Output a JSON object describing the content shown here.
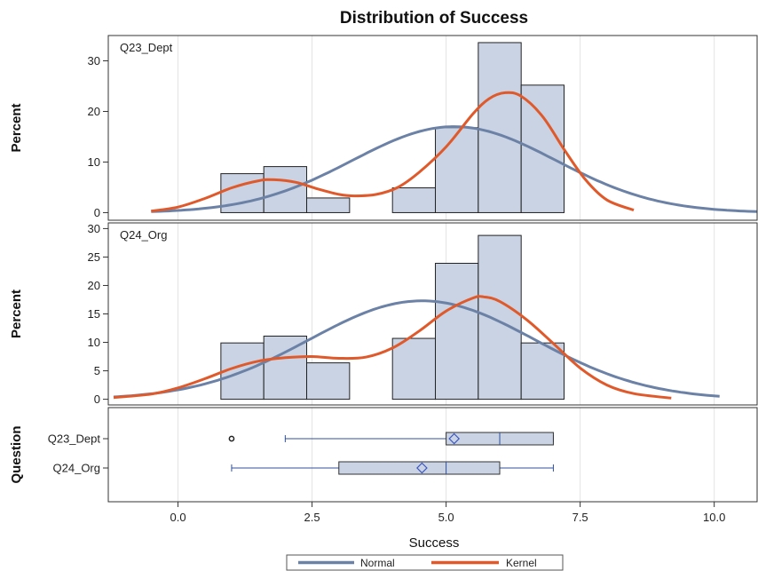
{
  "chart_data": {
    "type": "histogram-panel",
    "title": "Distribution of Success",
    "xlabel": "Success",
    "xlim": [
      -1.3,
      10.8
    ],
    "x_ticks": [
      "0.0",
      "2.5",
      "5.0",
      "7.5",
      "10.0"
    ],
    "x_tick_values": [
      0,
      2.5,
      5,
      7.5,
      10
    ],
    "bin_width": 0.8,
    "colors": {
      "bar_fill": "#c9d3e3",
      "bar_stroke": "#222222",
      "normal": "#6b81a6",
      "kernel": "#e0592b",
      "box_line": "#2f4f9c",
      "grid": "#e3e3e3",
      "axis": "#333333"
    },
    "panels": [
      {
        "label": "Q23_Dept",
        "ylabel": "Percent",
        "ylim": [
          -1.5,
          35
        ],
        "y_ticks": [
          "0",
          "10",
          "20",
          "30"
        ],
        "y_tick_values": [
          0,
          10,
          20,
          30
        ],
        "bins": [
          {
            "left": 0.8,
            "percent": 7.7
          },
          {
            "left": 1.6,
            "percent": 9.1
          },
          {
            "left": 2.4,
            "percent": 2.9
          },
          {
            "left": 4.0,
            "percent": 4.9
          },
          {
            "left": 4.8,
            "percent": 16.8
          },
          {
            "left": 5.6,
            "percent": 33.6
          },
          {
            "left": 6.4,
            "percent": 25.2
          }
        ],
        "normal": {
          "mean": 5.15,
          "sd": 1.9,
          "peak_percent": 17,
          "x_range": [
            -0.5,
            10.8
          ]
        },
        "kernel": [
          [
            -0.5,
            0.3
          ],
          [
            0.0,
            1.1
          ],
          [
            0.5,
            2.8
          ],
          [
            1.0,
            4.9
          ],
          [
            1.5,
            6.3
          ],
          [
            1.8,
            6.5
          ],
          [
            2.2,
            6.0
          ],
          [
            2.6,
            4.7
          ],
          [
            3.0,
            3.6
          ],
          [
            3.3,
            3.3
          ],
          [
            3.7,
            3.6
          ],
          [
            4.1,
            5.0
          ],
          [
            4.5,
            8.0
          ],
          [
            5.0,
            13.0
          ],
          [
            5.5,
            19.5
          ],
          [
            5.8,
            22.5
          ],
          [
            6.1,
            23.7
          ],
          [
            6.4,
            23.0
          ],
          [
            6.8,
            19.0
          ],
          [
            7.2,
            12.5
          ],
          [
            7.6,
            6.5
          ],
          [
            8.0,
            2.5
          ],
          [
            8.5,
            0.5
          ]
        ]
      },
      {
        "label": "Q24_Org",
        "ylabel": "Percent",
        "ylim": [
          -1,
          31
        ],
        "y_ticks": [
          "0",
          "5",
          "10",
          "15",
          "20",
          "25",
          "30"
        ],
        "y_tick_values": [
          0,
          5,
          10,
          15,
          20,
          25,
          30
        ],
        "bins": [
          {
            "left": 0.8,
            "percent": 9.9
          },
          {
            "left": 1.6,
            "percent": 11.1
          },
          {
            "left": 2.4,
            "percent": 6.4
          },
          {
            "left": 4.0,
            "percent": 10.7
          },
          {
            "left": 4.8,
            "percent": 23.9
          },
          {
            "left": 5.6,
            "percent": 28.8
          },
          {
            "left": 6.4,
            "percent": 9.9
          }
        ],
        "normal": {
          "mean": 4.55,
          "sd": 2.1,
          "peak_percent": 17.3,
          "x_range": [
            -1.2,
            10.1
          ]
        },
        "kernel": [
          [
            -1.2,
            0.3
          ],
          [
            -0.5,
            0.9
          ],
          [
            0.0,
            2.0
          ],
          [
            0.5,
            3.6
          ],
          [
            1.0,
            5.4
          ],
          [
            1.5,
            6.7
          ],
          [
            2.0,
            7.3
          ],
          [
            2.5,
            7.5
          ],
          [
            3.0,
            7.2
          ],
          [
            3.5,
            7.4
          ],
          [
            4.0,
            9.0
          ],
          [
            4.5,
            12.0
          ],
          [
            5.0,
            15.5
          ],
          [
            5.5,
            17.8
          ],
          [
            5.7,
            18.0
          ],
          [
            6.0,
            17.2
          ],
          [
            6.5,
            14.0
          ],
          [
            7.0,
            9.8
          ],
          [
            7.5,
            5.5
          ],
          [
            8.0,
            2.5
          ],
          [
            8.5,
            1.0
          ],
          [
            9.2,
            0.2
          ]
        ]
      }
    ],
    "boxplot": {
      "ylabel": "Question",
      "categories": [
        {
          "label": "Q23_Dept",
          "whisker_low": 2,
          "q1": 5,
          "median": 6,
          "q3": 7,
          "whisker_high": 7,
          "mean": 5.15,
          "outliers": [
            1
          ]
        },
        {
          "label": "Q24_Org",
          "whisker_low": 1,
          "q1": 3,
          "median": 5,
          "q3": 6,
          "whisker_high": 7,
          "mean": 4.55,
          "outliers": []
        }
      ]
    },
    "legend": {
      "placement": "bottom-center",
      "items": [
        "Normal",
        "Kernel"
      ]
    }
  }
}
